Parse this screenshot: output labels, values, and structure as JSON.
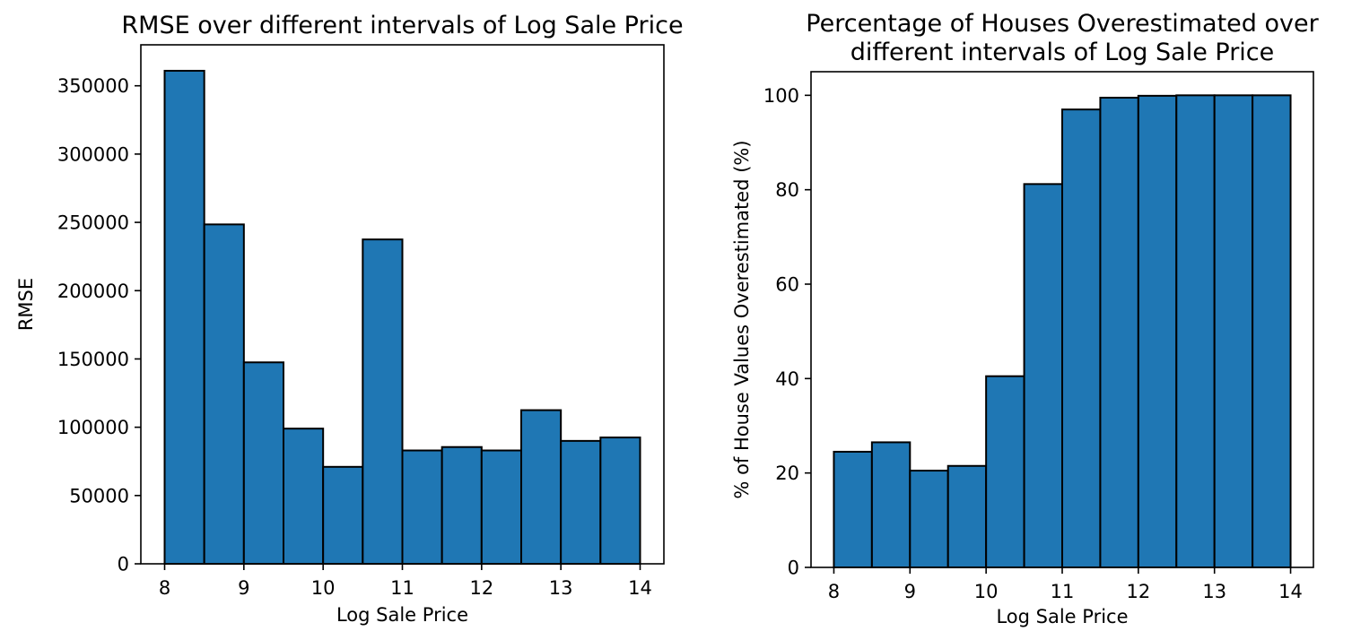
{
  "figure": {
    "background": "#ffffff"
  },
  "chart_data": [
    {
      "type": "bar",
      "title": [
        "RMSE over different intervals of Log Sale Price"
      ],
      "xlabel": "Log Sale Price",
      "ylabel": "RMSE",
      "bin_edges": [
        8,
        8.5,
        9,
        9.5,
        10,
        10.5,
        11,
        11.5,
        12,
        12.5,
        13,
        13.5,
        14
      ],
      "values": [
        361000,
        248500,
        147500,
        99000,
        71000,
        237500,
        83000,
        85500,
        83000,
        112500,
        90000,
        92500
      ],
      "xlim": [
        7.7,
        14.3
      ],
      "ylim": [
        0,
        380000
      ],
      "xticks": [
        8,
        9,
        10,
        11,
        12,
        13,
        14
      ],
      "yticks": [
        0,
        50000,
        100000,
        150000,
        200000,
        250000,
        300000,
        350000
      ],
      "bar_color": "#1f77b4",
      "edge_color": "#000000",
      "grid": false
    },
    {
      "type": "bar",
      "title": [
        "Percentage of Houses Overestimated over",
        "different intervals of Log Sale Price"
      ],
      "xlabel": "Log Sale Price",
      "ylabel": "% of House Values Overestimated (%)",
      "bin_edges": [
        8,
        8.5,
        9,
        9.5,
        10,
        10.5,
        11,
        11.5,
        12,
        12.5,
        13,
        13.5,
        14
      ],
      "values": [
        24.5,
        26.5,
        20.5,
        21.5,
        40.5,
        81.2,
        97.0,
        99.5,
        99.9,
        100,
        100,
        100
      ],
      "xlim": [
        7.7,
        14.3
      ],
      "ylim": [
        0,
        105
      ],
      "xticks": [
        8,
        9,
        10,
        11,
        12,
        13,
        14
      ],
      "yticks": [
        0,
        20,
        40,
        60,
        80,
        100
      ],
      "bar_color": "#1f77b4",
      "edge_color": "#000000",
      "grid": false
    }
  ]
}
